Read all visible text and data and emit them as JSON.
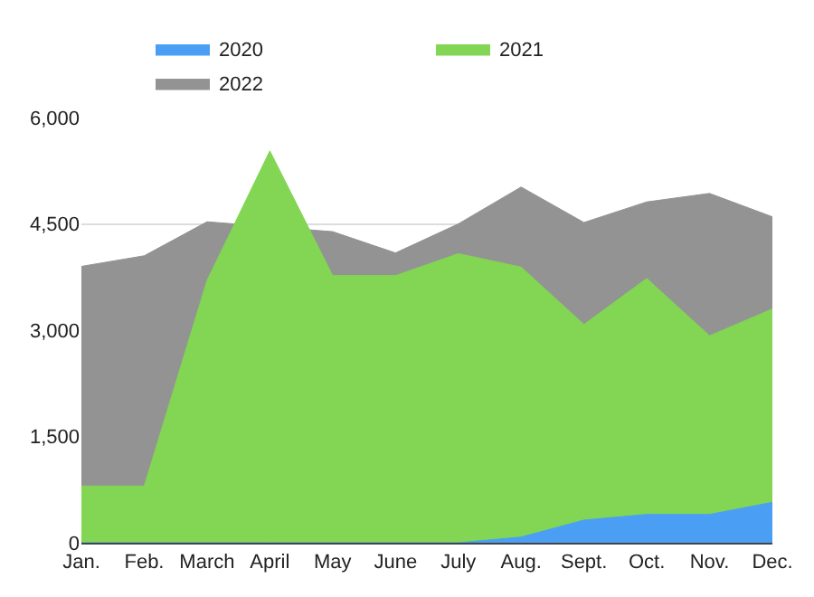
{
  "chart_data": {
    "type": "area",
    "categories": [
      "Jan.",
      "Feb.",
      "March",
      "April",
      "May",
      "June",
      "July",
      "Aug.",
      "Sept.",
      "Oct.",
      "Nov.",
      "Dec."
    ],
    "series": [
      {
        "name": "2020",
        "color": "#4a9ff5",
        "values": [
          0,
          0,
          0,
          0,
          0,
          0,
          0,
          80,
          320,
          400,
          400,
          570
        ]
      },
      {
        "name": "2021",
        "color": "#82d653",
        "values": [
          800,
          800,
          3700,
          5530,
          3770,
          3770,
          4080,
          3890,
          3080,
          3730,
          2920,
          3300
        ]
      },
      {
        "name": "2022",
        "color": "#939393",
        "values": [
          3900,
          4050,
          4530,
          null,
          4390,
          4090,
          4500,
          5020,
          4520,
          4810,
          4930,
          4600
        ]
      }
    ],
    "ylim": [
      0,
      6000
    ],
    "yticks": [
      {
        "value": 0,
        "label": "0"
      },
      {
        "value": 1500,
        "label": "1,500"
      },
      {
        "value": 3000,
        "label": "3,000"
      },
      {
        "value": 4500,
        "label": "4,500"
      },
      {
        "value": 6000,
        "label": "6,000"
      }
    ],
    "grid": "y",
    "legend": "top"
  }
}
